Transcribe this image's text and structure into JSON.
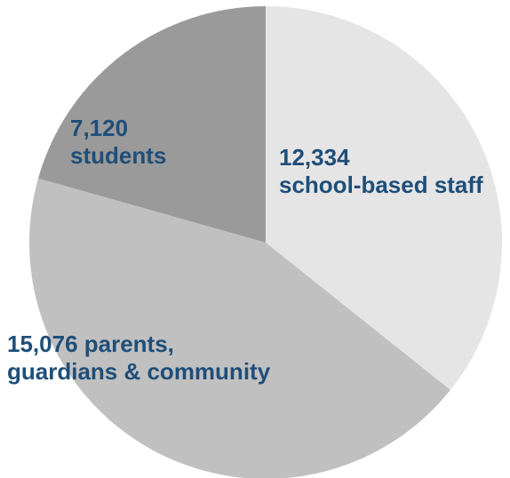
{
  "chart_data": {
    "type": "pie",
    "slices": [
      {
        "label": "school-based staff",
        "value": 12334,
        "value_text": "12,334",
        "color": "#e5e5e5"
      },
      {
        "label": "parents, guardians & community",
        "value": 15076,
        "value_text": "15,076",
        "color": "#c0c0c0"
      },
      {
        "label": "students",
        "value": 7120,
        "value_text": "7,120",
        "color": "#9a9a9a"
      }
    ],
    "label_color": "#1f4e79",
    "labels": {
      "staff": {
        "line1": "12,334",
        "line2": "school-based staff"
      },
      "parents": {
        "line1": "15,076 parents,",
        "line2": "guardians & community"
      },
      "students": {
        "line1": "7,120",
        "line2": "students"
      }
    }
  }
}
